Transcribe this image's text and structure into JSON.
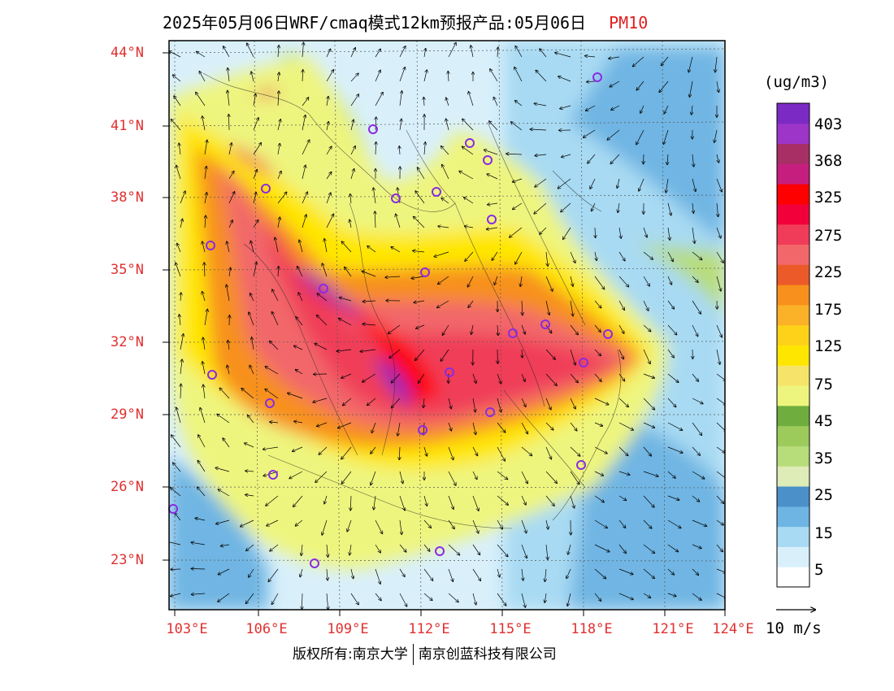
{
  "header": {
    "title": "2025年05月06日WRF/cmaq模式12km预报产品:05月06日",
    "variable": "PM10"
  },
  "axes": {
    "lat_labels": [
      "44°N",
      "41°N",
      "38°N",
      "35°N",
      "32°N",
      "29°N",
      "26°N",
      "23°N"
    ],
    "lon_labels": [
      "103°E",
      "106°E",
      "109°E",
      "112°E",
      "115°E",
      "118°E",
      "121°E",
      "124°E"
    ],
    "lat_range": [
      20.9,
      44.5
    ],
    "lon_range": [
      102.8,
      124.0
    ]
  },
  "colorbar": {
    "unit": "(ug/m3)",
    "labels": [
      "403",
      "368",
      "325",
      "275",
      "225",
      "175",
      "125",
      "75",
      "45",
      "35",
      "25",
      "15",
      "5"
    ],
    "colors": [
      "#ffffff",
      "#d9f0fb",
      "#a8daf3",
      "#6fb5e3",
      "#4b90c8",
      "#deecb8",
      "#b7dc7a",
      "#9ccb5c",
      "#6fae3e",
      "#eef57e",
      "#f6e46a",
      "#ffe600",
      "#ffd21a",
      "#fbb128",
      "#f7901c",
      "#ec5a2a",
      "#f2686a",
      "#f03c58",
      "#f2003a",
      "#ff0000",
      "#c61e7e",
      "#a82e66",
      "#9c35c8",
      "#7b2bc4"
    ]
  },
  "wind_vector": {
    "label": "10 m/s"
  },
  "footer": {
    "copyright": "版权所有:南京大学",
    "company": "南京创蓝科技有限公司"
  }
}
